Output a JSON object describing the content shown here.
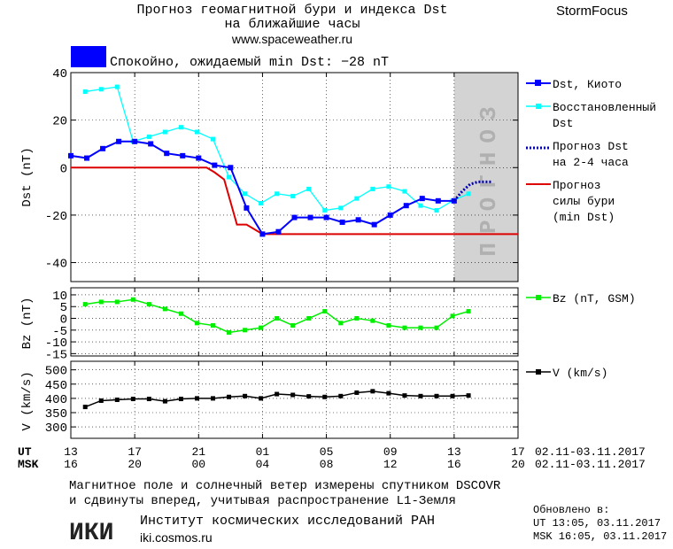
{
  "header": {
    "title_line1": "Прогноз геомагнитной бури и индекса Dst",
    "title_line2": "на ближайшие часы",
    "site": "www.spaceweather.ru",
    "brand": "StormFocus"
  },
  "status": {
    "text": "Спокойно, ожидаемый min Dst: −28 nT",
    "color": "#0000ff"
  },
  "forecast_band_label": "ПРОГНОЗ",
  "time_axis": {
    "ut_label": "UT",
    "msk_label": "MSK",
    "ut_ticks": [
      "13",
      "17",
      "21",
      "01",
      "05",
      "09",
      "13",
      "17"
    ],
    "msk_ticks": [
      "16",
      "20",
      "00",
      "04",
      "08",
      "12",
      "16",
      "20"
    ],
    "date_range_ut": "02.11-03.11.2017",
    "date_range_msk": "02.11-03.11.2017"
  },
  "legend": {
    "dst_kyoto": "Dst, Киото",
    "restored_line1": "Восстановленный",
    "restored_line2": "Dst",
    "forecast_dst_line1": "Прогноз Dst",
    "forecast_dst_line2": "на 2-4 часа",
    "storm_line1": "Прогноз",
    "storm_line2": "силы бури",
    "storm_line3": "(min Dst)",
    "bz": "Bz (nT, GSM)",
    "v": "V (km/s)"
  },
  "footer": {
    "line1": "Магнитное поле и солнечный ветер измерены спутником DSCOVR",
    "line2": "и сдвинуты вперед, учитывая распространение L1-Земля",
    "institute": "Институт космических исследований РАН",
    "institute_url": "iki.cosmos.ru",
    "logo_text": "ИКИ",
    "updated_title": "Обновлено в:",
    "updated_ut": "UT  13:05, 03.11.2017",
    "updated_msk": "MSK 16:05, 03.11.2017"
  },
  "colors": {
    "dst_kyoto": "#0000ff",
    "restored": "#00ffff",
    "forecast_dst": "#0000bb",
    "storm": "#dd0000",
    "bz": "#00ee00",
    "v": "#000000",
    "forecast_band": "#d3d3d3"
  },
  "chart_data": [
    {
      "type": "line",
      "ylabel": "Dst (nT)",
      "ylim": [
        -48,
        40
      ],
      "yticks": [
        40,
        20,
        0,
        -20,
        -40
      ],
      "xlim": [
        13,
        41
      ],
      "series": [
        {
          "name": "Dst, Киото",
          "x": [
            13,
            14,
            15,
            16,
            17,
            18,
            19,
            20,
            21,
            22,
            23,
            24,
            25,
            26,
            27,
            28,
            29,
            30,
            31,
            32,
            33,
            34,
            35,
            36,
            37,
            38
          ],
          "values": [
            5,
            4,
            8,
            11,
            11,
            10,
            6,
            5,
            4,
            1,
            0,
            -17,
            -28,
            -27,
            -21,
            -21,
            -21,
            -23,
            -22,
            -24,
            -20,
            -16,
            -13,
            -14,
            -14,
            null
          ]
        },
        {
          "name": "Восстановленный Dst",
          "x": [
            13.9,
            14.9,
            15.9,
            16.9,
            17.9,
            18.9,
            19.9,
            20.9,
            21.9,
            22.9,
            23.9,
            24.9,
            25.9,
            26.9,
            27.9,
            28.9,
            29.9,
            30.9,
            31.9,
            32.9,
            33.9,
            34.9,
            35.9,
            36.9,
            37.9
          ],
          "values": [
            32,
            33,
            34,
            11,
            13,
            15,
            17,
            15,
            12,
            -4,
            -11,
            -15,
            -11,
            -12,
            -9,
            -18,
            -17,
            -13,
            -9,
            -8,
            -10,
            -16,
            -18,
            -14,
            -11
          ]
        },
        {
          "name": "Прогноз Dst на 2-4 часа",
          "x": [
            37,
            37.5,
            38,
            38.5,
            39.4
          ],
          "values": [
            -14,
            -10,
            -7,
            -6,
            -6
          ]
        },
        {
          "name": "Прогноз силы бури (min Dst)",
          "x": [
            13,
            21.5,
            22,
            22.6,
            23.4,
            24,
            25,
            41
          ],
          "values": [
            0,
            0,
            -2,
            -5,
            -24,
            -24,
            -28,
            -28
          ]
        }
      ],
      "forecast_region_x": [
        37,
        41
      ]
    },
    {
      "type": "line",
      "ylabel": "Bz (nT)",
      "ylim": [
        -16,
        13
      ],
      "yticks": [
        10,
        5,
        0,
        -5,
        -10,
        -15
      ],
      "series": [
        {
          "name": "Bz (nT, GSM)",
          "x": [
            13.9,
            14.9,
            15.9,
            16.9,
            17.9,
            18.9,
            19.9,
            20.9,
            21.9,
            22.9,
            23.9,
            24.9,
            25.9,
            26.9,
            27.9,
            28.9,
            29.9,
            30.9,
            31.9,
            32.9,
            33.9,
            34.9,
            35.9,
            36.9,
            37.9
          ],
          "values": [
            6,
            7,
            7,
            8,
            6,
            4,
            2,
            -2,
            -3,
            -6,
            -5,
            -4,
            0,
            -3,
            0,
            3,
            -2,
            0,
            -1,
            -3,
            -4,
            -4,
            -4,
            1,
            3
          ]
        }
      ]
    },
    {
      "type": "line",
      "ylabel": "V (km/s)",
      "ylim": [
        260,
        530
      ],
      "yticks": [
        500,
        450,
        400,
        350,
        300
      ],
      "series": [
        {
          "name": "V (km/s)",
          "x": [
            13.9,
            14.9,
            15.9,
            16.9,
            17.9,
            18.9,
            19.9,
            20.9,
            21.9,
            22.9,
            23.9,
            24.9,
            25.9,
            26.9,
            27.9,
            28.9,
            29.9,
            30.9,
            31.9,
            32.9,
            33.9,
            34.9,
            35.9,
            36.9,
            37.9
          ],
          "values": [
            370,
            392,
            395,
            398,
            398,
            390,
            398,
            400,
            400,
            405,
            408,
            400,
            415,
            412,
            407,
            405,
            408,
            420,
            425,
            418,
            410,
            408,
            408,
            408,
            410
          ]
        }
      ]
    }
  ]
}
